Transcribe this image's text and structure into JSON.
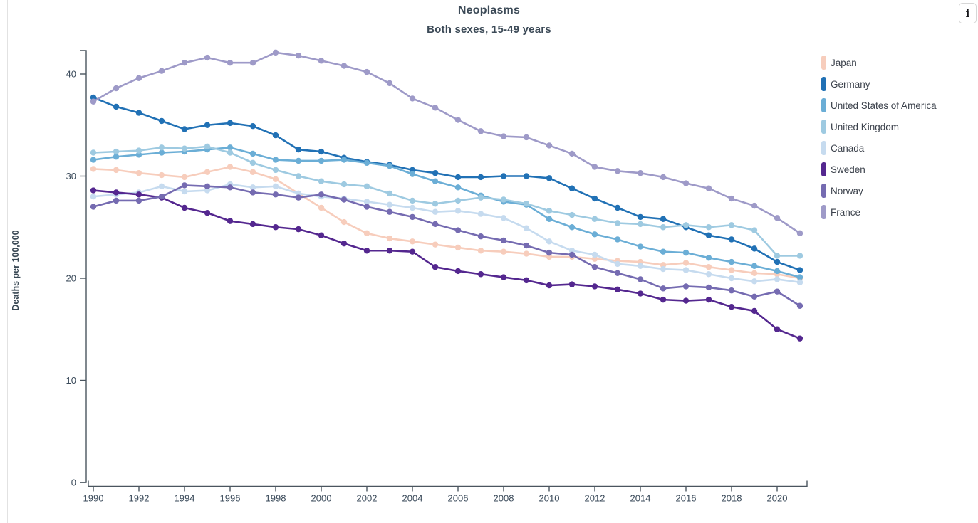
{
  "header": {
    "title": "Neoplasms",
    "subtitle": "Both sexes, 15-49 years"
  },
  "info_button": {
    "label": "i"
  },
  "axes": {
    "y_label": "Deaths per 100,000"
  },
  "chart_data": {
    "type": "line",
    "title": "Neoplasms",
    "subtitle": "Both sexes, 15-49 years",
    "xlabel": "",
    "ylabel": "Deaths per 100,000",
    "x": [
      1990,
      1991,
      1992,
      1993,
      1994,
      1995,
      1996,
      1997,
      1998,
      1999,
      2000,
      2001,
      2002,
      2003,
      2004,
      2005,
      2006,
      2007,
      2008,
      2009,
      2010,
      2011,
      2012,
      2013,
      2014,
      2015,
      2016,
      2017,
      2018,
      2019,
      2020,
      2021
    ],
    "x_tick_labels": [
      "1990",
      "1992",
      "1994",
      "1996",
      "1998",
      "2000",
      "2002",
      "2004",
      "2006",
      "2008",
      "2010",
      "2012",
      "2014",
      "2016",
      "2018",
      "2020"
    ],
    "y_ticks": [
      0,
      10,
      20,
      30,
      40
    ],
    "xlim": [
      1990,
      2021
    ],
    "ylim": [
      0,
      42.5
    ],
    "grid": false,
    "legend_position": "right",
    "marker": "circle",
    "series": [
      {
        "name": "Japan",
        "slug": "japan",
        "color": "#f7cdbc",
        "values": [
          30.7,
          30.6,
          30.3,
          30.1,
          29.9,
          30.4,
          30.9,
          30.4,
          29.7,
          28.3,
          26.9,
          25.5,
          24.4,
          23.9,
          23.6,
          23.3,
          23.0,
          22.7,
          22.6,
          22.4,
          22.1,
          22.1,
          21.9,
          21.7,
          21.6,
          21.3,
          21.5,
          21.1,
          20.8,
          20.5,
          20.4,
          20.0
        ]
      },
      {
        "name": "Germany",
        "slug": "germany",
        "color": "#2171b5",
        "values": [
          37.7,
          36.8,
          36.2,
          35.4,
          34.6,
          35.0,
          35.2,
          34.9,
          34.0,
          32.6,
          32.4,
          31.8,
          31.4,
          31.1,
          30.6,
          30.3,
          29.9,
          29.9,
          30.0,
          30.0,
          29.8,
          28.8,
          27.8,
          26.9,
          26.0,
          25.8,
          25.0,
          24.2,
          23.8,
          22.9,
          21.6,
          20.8
        ]
      },
      {
        "name": "United States of America",
        "slug": "united-states-of-america",
        "color": "#6baed6",
        "values": [
          31.6,
          31.9,
          32.1,
          32.3,
          32.4,
          32.6,
          32.8,
          32.2,
          31.6,
          31.5,
          31.5,
          31.6,
          31.3,
          31.0,
          30.2,
          29.5,
          28.9,
          28.1,
          27.5,
          27.2,
          25.8,
          25.0,
          24.3,
          23.8,
          23.1,
          22.6,
          22.5,
          22.0,
          21.6,
          21.2,
          20.7,
          20.1
        ]
      },
      {
        "name": "United Kingdom",
        "slug": "united-kingdom",
        "color": "#9ecae1",
        "values": [
          32.3,
          32.4,
          32.5,
          32.8,
          32.7,
          32.9,
          32.3,
          31.3,
          30.6,
          30.0,
          29.5,
          29.2,
          29.0,
          28.3,
          27.6,
          27.3,
          27.6,
          27.9,
          27.7,
          27.3,
          26.6,
          26.2,
          25.8,
          25.4,
          25.3,
          25.0,
          25.2,
          25.0,
          25.2,
          24.7,
          22.2,
          22.2
        ]
      },
      {
        "name": "Canada",
        "slug": "canada",
        "color": "#c6dbef",
        "values": [
          28.0,
          28.2,
          28.4,
          29.0,
          28.5,
          28.6,
          29.2,
          28.9,
          29.0,
          28.3,
          28.0,
          27.8,
          27.5,
          27.2,
          26.9,
          26.5,
          26.6,
          26.3,
          25.9,
          24.9,
          23.6,
          22.7,
          22.3,
          21.4,
          21.2,
          20.9,
          20.8,
          20.4,
          20.0,
          19.7,
          19.9,
          19.6
        ]
      },
      {
        "name": "Sweden",
        "slug": "sweden",
        "color": "#54278f",
        "values": [
          28.6,
          28.4,
          28.2,
          27.9,
          26.9,
          26.4,
          25.6,
          25.3,
          25.0,
          24.8,
          24.2,
          23.4,
          22.7,
          22.7,
          22.6,
          21.1,
          20.7,
          20.4,
          20.1,
          19.8,
          19.3,
          19.4,
          19.2,
          18.9,
          18.5,
          17.9,
          17.8,
          17.9,
          17.2,
          16.8,
          15.0,
          14.1
        ]
      },
      {
        "name": "Norway",
        "slug": "norway",
        "color": "#756bb1",
        "values": [
          27.0,
          27.6,
          27.6,
          28.0,
          29.1,
          29.0,
          28.9,
          28.4,
          28.2,
          27.9,
          28.2,
          27.7,
          27.0,
          26.5,
          26.0,
          25.3,
          24.7,
          24.1,
          23.7,
          23.2,
          22.5,
          22.3,
          21.1,
          20.5,
          19.9,
          19.0,
          19.2,
          19.1,
          18.8,
          18.2,
          18.7,
          17.3
        ]
      },
      {
        "name": "France",
        "slug": "france",
        "color": "#9e9ac8",
        "values": [
          37.3,
          38.6,
          39.6,
          40.3,
          41.1,
          41.6,
          41.1,
          41.1,
          42.1,
          41.8,
          41.3,
          40.8,
          40.2,
          39.1,
          37.6,
          36.7,
          35.5,
          34.4,
          33.9,
          33.8,
          33.0,
          32.2,
          30.9,
          30.5,
          30.3,
          29.9,
          29.3,
          28.8,
          27.8,
          27.1,
          25.9,
          24.4
        ]
      }
    ]
  }
}
